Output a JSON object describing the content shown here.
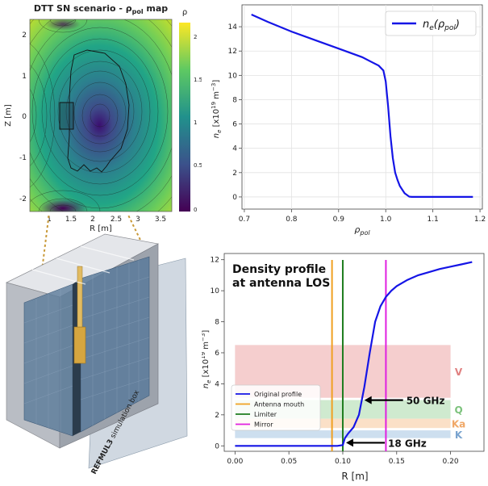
{
  "map_panel": {
    "title": "DTT SN scenario - ρ",
    "title_sub": "pol",
    "title_end": " map",
    "xlabel": "R [m]",
    "ylabel": "Z [m]",
    "x_ticks": [
      "1",
      "1.5",
      "2",
      "2.5",
      "3",
      "3.5"
    ],
    "y_ticks": [
      "2",
      "1",
      "0",
      "-1",
      "-2"
    ],
    "colorbar_label": "ρ",
    "colorbar_ticks": [
      "2",
      "1.5",
      "1",
      "0.5",
      "0"
    ]
  },
  "antenna_panel": {
    "caption_bold": "REFMUL3",
    "caption_rest": " simulation box"
  },
  "chart_data": [
    {
      "type": "line",
      "title": "",
      "xlabel": "ρpol",
      "ylabel": "ne [x10^19 m^-3]",
      "xlabel_main": "ρ",
      "xlabel_sub": "pol",
      "ylabel_text": "[x10",
      "ylabel_exp1": "19",
      "ylabel_mid": " m",
      "ylabel_exp2": "−3",
      "ylabel_end": "]",
      "xlim": [
        0.695,
        1.205
      ],
      "ylim": [
        -1.0,
        15.8
      ],
      "x_ticks": [
        0.7,
        0.8,
        0.9,
        1.0,
        1.1,
        1.2
      ],
      "x_tick_labels": [
        "0.7",
        "0.8",
        "0.9",
        "1.0",
        "1.1",
        "1.2"
      ],
      "y_ticks": [
        0,
        2,
        4,
        6,
        8,
        10,
        12,
        14
      ],
      "y_tick_labels": [
        "0",
        "2",
        "4",
        "6",
        "8",
        "10",
        "12",
        "14"
      ],
      "grid": true,
      "legend_position": "top-right",
      "legend_label": "ne(ρpol)",
      "legend_main": "n",
      "legend_sub": "e",
      "legend_args": "(ρ",
      "legend_args_sub": "pol",
      "legend_close": ")",
      "series": [
        {
          "name": "ne(ρpol)",
          "color": "#1515e6",
          "x": [
            0.715,
            0.75,
            0.8,
            0.85,
            0.9,
            0.95,
            0.97,
            0.985,
            0.995,
            1.0,
            1.005,
            1.01,
            1.015,
            1.02,
            1.025,
            1.03,
            1.04,
            1.05,
            1.055,
            1.1,
            1.15,
            1.185
          ],
          "y": [
            15.0,
            14.4,
            13.6,
            12.9,
            12.2,
            11.5,
            11.1,
            10.8,
            10.4,
            9.5,
            7.5,
            5.0,
            3.2,
            2.0,
            1.4,
            0.9,
            0.3,
            0.02,
            0.0,
            0.0,
            0.0,
            0.0
          ]
        }
      ]
    },
    {
      "type": "line",
      "title": "Density profile at antenna LOS",
      "title_line1": "Density profile",
      "title_line2": "at antenna LOS",
      "xlabel": "R [m]",
      "ylabel": "ne [x10^19 m^-3]",
      "ylabel_main": "n",
      "ylabel_sub": "e",
      "ylabel_text": "[x10",
      "ylabel_exp1": "19",
      "ylabel_mid": " m",
      "ylabel_exp2": "−3",
      "ylabel_end": "]",
      "xlim": [
        -0.01,
        0.231
      ],
      "ylim": [
        -0.35,
        12.4
      ],
      "x_ticks": [
        0.0,
        0.05,
        0.1,
        0.15,
        0.2
      ],
      "x_tick_labels": [
        "0.00",
        "0.05",
        "0.10",
        "0.15",
        "0.20"
      ],
      "y_ticks": [
        0,
        2,
        4,
        6,
        8,
        10,
        12
      ],
      "y_tick_labels": [
        "0",
        "2",
        "4",
        "6",
        "8",
        "10",
        "12"
      ],
      "grid": false,
      "legend_position": "bottom-left",
      "series": [
        {
          "name": "Original profile",
          "color": "#1515e6",
          "x": [
            0.0,
            0.09,
            0.095,
            0.1,
            0.102,
            0.105,
            0.11,
            0.115,
            0.12,
            0.125,
            0.13,
            0.135,
            0.14,
            0.145,
            0.15,
            0.16,
            0.17,
            0.18,
            0.19,
            0.2,
            0.21,
            0.22
          ],
          "y": [
            0.0,
            0.0,
            0.0,
            0.05,
            0.5,
            0.8,
            1.2,
            2.0,
            3.8,
            6.0,
            8.0,
            9.0,
            9.6,
            10.0,
            10.3,
            10.7,
            11.0,
            11.2,
            11.4,
            11.55,
            11.7,
            11.85
          ]
        }
      ],
      "vertical_lines": [
        {
          "name": "Antenna mouth",
          "x": 0.09,
          "color": "#f0a020"
        },
        {
          "name": "Limiter",
          "x": 0.1,
          "color": "#1e7d1e"
        },
        {
          "name": "Mirror",
          "x": 0.14,
          "color": "#e020e0"
        }
      ],
      "bands": [
        {
          "label": "V",
          "y0": 3.1,
          "y1": 6.5,
          "color": "#f2bebe",
          "text_color": "#e08080"
        },
        {
          "label": "Q",
          "y0": 1.75,
          "y1": 2.95,
          "color": "#bfe3bf",
          "text_color": "#7cc27c"
        },
        {
          "label": "Ka",
          "y0": 1.15,
          "y1": 1.75,
          "color": "#f9d6b4",
          "text_color": "#f0a868"
        },
        {
          "label": "K",
          "y0": 0.5,
          "y1": 1.0,
          "color": "#bcd4ea",
          "text_color": "#7aa4cf"
        }
      ],
      "annotations": [
        {
          "text": "50 GHz",
          "x": 0.12,
          "y": 2.95
        },
        {
          "text": "18 GHz",
          "x": 0.103,
          "y": 0.2
        }
      ],
      "legend_entries": [
        "Original profile",
        "Antenna mouth",
        "Limiter",
        "Mirror"
      ]
    }
  ]
}
